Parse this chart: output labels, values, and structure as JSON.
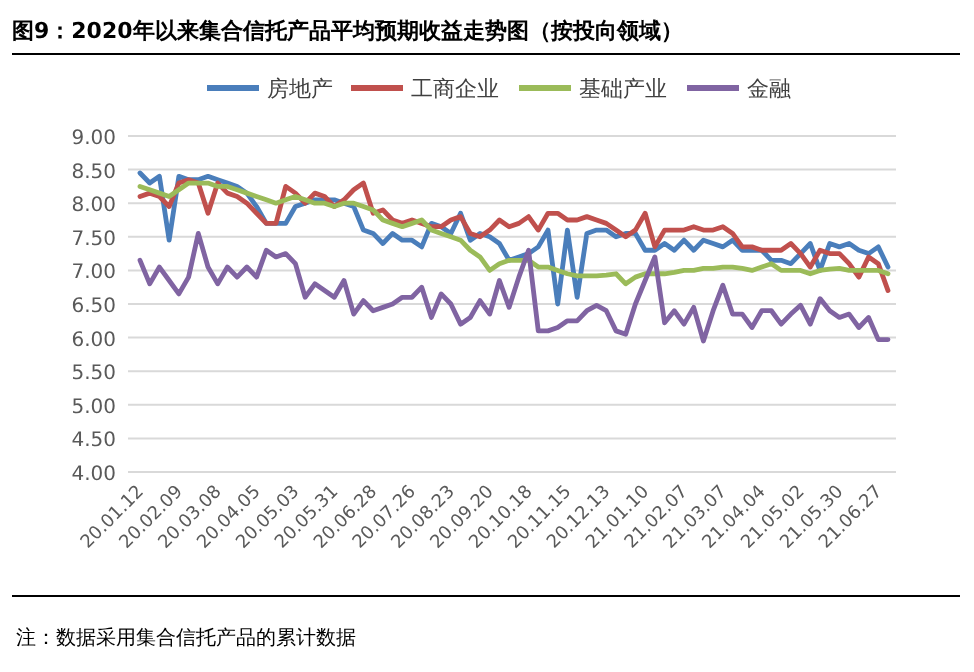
{
  "chart_data": {
    "type": "line",
    "title": "图9：2020年以来集合信托产品平均预期收益走势图（按投向领域）",
    "categories": [
      "20.01.12",
      null,
      null,
      null,
      "20.02.09",
      null,
      null,
      null,
      "20.03.08",
      null,
      null,
      null,
      "20.04.05",
      null,
      null,
      null,
      "20.05.03",
      null,
      null,
      null,
      "20.05.31",
      null,
      null,
      null,
      "20.06.28",
      null,
      null,
      null,
      "20.07.26",
      null,
      null,
      null,
      "20.08.23",
      null,
      null,
      null,
      "20.09.20",
      null,
      null,
      null,
      "20.10.18",
      null,
      null,
      null,
      "20.11.15",
      null,
      null,
      null,
      "20.12.13",
      null,
      null,
      null,
      "21.01.10",
      null,
      null,
      null,
      "21.02.07",
      null,
      null,
      null,
      "21.03.07",
      null,
      null,
      null,
      "21.04.04",
      null,
      null,
      null,
      "21.05.02",
      null,
      null,
      null,
      "21.05.30",
      null,
      null,
      null,
      "21.06.27",
      null
    ],
    "series": [
      {
        "name": "房地产",
        "color": "#4a7ebb",
        "values": [
          8.45,
          8.3,
          8.4,
          7.45,
          8.4,
          8.35,
          8.35,
          8.4,
          8.35,
          8.3,
          8.25,
          8.15,
          7.95,
          7.7,
          7.7,
          7.7,
          7.95,
          8.0,
          8.05,
          8.05,
          8.05,
          8.0,
          7.95,
          7.6,
          7.55,
          7.4,
          7.55,
          7.45,
          7.45,
          7.35,
          7.7,
          7.65,
          7.55,
          7.85,
          7.45,
          7.55,
          7.5,
          7.4,
          7.15,
          7.2,
          7.25,
          7.35,
          7.6,
          6.5,
          7.6,
          6.6,
          7.55,
          7.6,
          7.6,
          7.5,
          7.55,
          7.55,
          7.3,
          7.3,
          7.4,
          7.3,
          7.45,
          7.3,
          7.45,
          7.4,
          7.35,
          7.45,
          7.3,
          7.3,
          7.3,
          7.15,
          7.15,
          7.1,
          7.25,
          7.4,
          7.0,
          7.4,
          7.35,
          7.4,
          7.3,
          7.25,
          7.35,
          7.05
        ]
      },
      {
        "name": "工商企业",
        "color": "#c0504d",
        "values": [
          8.1,
          8.15,
          8.1,
          7.95,
          8.3,
          8.35,
          8.3,
          7.85,
          8.3,
          8.15,
          8.1,
          8.0,
          7.85,
          7.7,
          7.7,
          8.25,
          8.15,
          8.0,
          8.15,
          8.1,
          7.95,
          8.05,
          8.2,
          8.3,
          7.85,
          7.9,
          7.75,
          7.7,
          7.75,
          7.7,
          7.65,
          7.65,
          7.75,
          7.8,
          7.55,
          7.5,
          7.6,
          7.75,
          7.65,
          7.7,
          7.8,
          7.6,
          7.85,
          7.85,
          7.75,
          7.75,
          7.8,
          7.75,
          7.7,
          7.6,
          7.5,
          7.6,
          7.85,
          7.35,
          7.6,
          7.6,
          7.6,
          7.65,
          7.6,
          7.6,
          7.65,
          7.55,
          7.35,
          7.35,
          7.3,
          7.3,
          7.3,
          7.4,
          7.25,
          7.05,
          7.3,
          7.25,
          7.25,
          7.1,
          6.9,
          7.2,
          7.1,
          6.7
        ]
      },
      {
        "name": "基础产业",
        "color": "#9bbb59",
        "values": [
          8.25,
          8.2,
          8.15,
          8.1,
          8.2,
          8.3,
          8.3,
          8.3,
          8.25,
          8.25,
          8.2,
          8.15,
          8.1,
          8.05,
          8.0,
          8.05,
          8.1,
          8.05,
          8.0,
          8.0,
          7.95,
          8.0,
          8.0,
          7.95,
          7.9,
          7.75,
          7.7,
          7.65,
          7.7,
          7.75,
          7.6,
          7.55,
          7.5,
          7.45,
          7.3,
          7.2,
          7.0,
          7.1,
          7.15,
          7.15,
          7.15,
          7.05,
          7.05,
          7.0,
          6.95,
          6.92,
          6.92,
          6.92,
          6.93,
          6.95,
          6.8,
          6.9,
          6.95,
          6.95,
          6.95,
          6.97,
          7.0,
          7.0,
          7.03,
          7.03,
          7.05,
          7.05,
          7.03,
          7.0,
          7.05,
          7.1,
          7.0,
          7.0,
          7.0,
          6.95,
          7.0,
          7.02,
          7.03,
          7.0,
          7.0,
          7.0,
          7.0,
          6.95
        ]
      },
      {
        "name": "金融",
        "color": "#8064a2",
        "values": [
          7.15,
          6.8,
          7.05,
          6.85,
          6.65,
          6.9,
          7.55,
          7.05,
          6.8,
          7.05,
          6.9,
          7.05,
          6.9,
          7.3,
          7.2,
          7.25,
          7.1,
          6.6,
          6.8,
          6.7,
          6.6,
          6.85,
          6.35,
          6.55,
          6.4,
          6.45,
          6.5,
          6.6,
          6.6,
          6.75,
          6.3,
          6.65,
          6.5,
          6.2,
          6.3,
          6.55,
          6.35,
          6.85,
          6.45,
          6.9,
          7.3,
          6.1,
          6.1,
          6.15,
          6.25,
          6.25,
          6.4,
          6.48,
          6.4,
          6.1,
          6.05,
          6.5,
          6.85,
          7.2,
          6.22,
          6.4,
          6.2,
          6.45,
          5.95,
          6.4,
          6.78,
          6.35,
          6.35,
          6.15,
          6.4,
          6.4,
          6.2,
          6.35,
          6.48,
          6.2,
          6.58,
          6.4,
          6.3,
          6.35,
          6.15,
          6.3,
          5.97,
          5.97
        ]
      }
    ],
    "ylim": [
      4,
      9
    ],
    "yticks": [
      {
        "value": 4,
        "label": "4.00"
      },
      {
        "value": 4.5,
        "label": "4.50"
      },
      {
        "value": 5,
        "label": "5.00"
      },
      {
        "value": 5.5,
        "label": "5.50"
      },
      {
        "value": 6,
        "label": "6.00"
      },
      {
        "value": 6.5,
        "label": "6.50"
      },
      {
        "value": 7,
        "label": "7.00"
      },
      {
        "value": 7.5,
        "label": "7.50"
      },
      {
        "value": 8,
        "label": "8.00"
      },
      {
        "value": 8.5,
        "label": "8.50"
      },
      {
        "value": 9,
        "label": "9.00"
      }
    ],
    "grid": "y",
    "legend": "top",
    "marker": "none",
    "line_style": "solid",
    "annotations": [
      "注：数据采用集合信托产品的累计数据"
    ]
  }
}
